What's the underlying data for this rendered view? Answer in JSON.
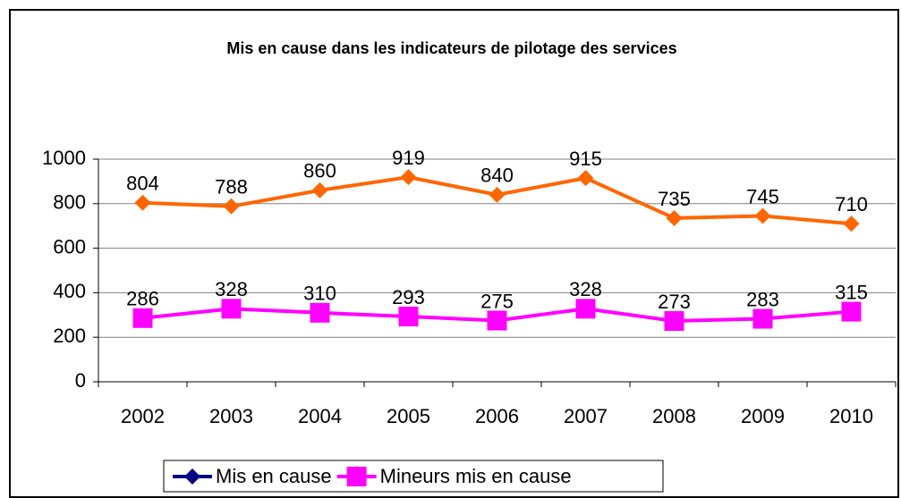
{
  "chart_data": {
    "type": "line",
    "title": "Mis en cause dans les indicateurs de pilotage des  services",
    "categories": [
      "2002",
      "2003",
      "2004",
      "2005",
      "2006",
      "2007",
      "2008",
      "2009",
      "2010"
    ],
    "series": [
      {
        "name": "Mis en cause",
        "color": "#ff6600",
        "legend_color": "#000080",
        "marker": "diamond",
        "values": [
          804,
          788,
          860,
          919,
          840,
          915,
          735,
          745,
          710
        ]
      },
      {
        "name": "Mineurs mis en cause",
        "color": "#ff00ff",
        "marker": "square",
        "values": [
          286,
          328,
          310,
          293,
          275,
          328,
          273,
          283,
          315
        ]
      }
    ],
    "ylim": [
      0,
      1000
    ],
    "yticks": [
      0,
      200,
      400,
      600,
      800,
      1000
    ],
    "grid": true,
    "legend": "bottom"
  }
}
